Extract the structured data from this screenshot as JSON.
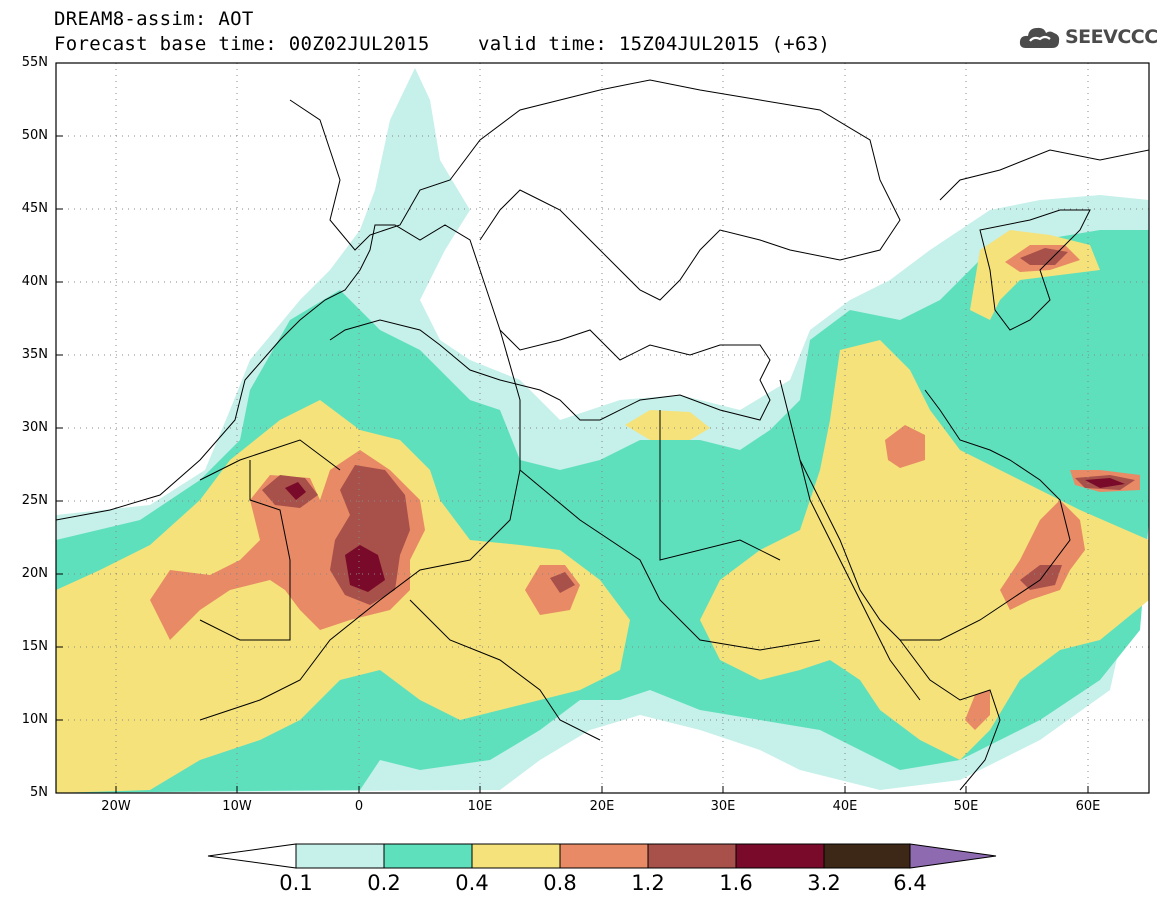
{
  "header": {
    "title": "DREAM8-assim: AOT",
    "base_time": "Forecast base time: 00Z02JUL2015",
    "valid_time": "valid time: 15Z04JUL2015 (+63)"
  },
  "logo": {
    "text": "SEEVCCC",
    "icon": "cloud-icon"
  },
  "map": {
    "lon_range": [
      -25,
      65
    ],
    "lat_range": [
      5,
      55
    ],
    "lat_labels": [
      "55N",
      "50N",
      "45N",
      "40N",
      "35N",
      "30N",
      "25N",
      "20N",
      "15N",
      "10N",
      "5N"
    ],
    "lat_values": [
      55,
      50,
      45,
      40,
      35,
      30,
      25,
      20,
      15,
      10,
      5
    ],
    "lon_labels": [
      "20W",
      "10W",
      "0",
      "10E",
      "20E",
      "30E",
      "40E",
      "50E",
      "60E"
    ],
    "lon_values": [
      -20,
      -10,
      0,
      10,
      20,
      30,
      40,
      50,
      60
    ],
    "field": "AOT"
  },
  "colorbar": {
    "labels": [
      "0.1",
      "0.2",
      "0.4",
      "0.8",
      "1.2",
      "1.6",
      "3.2",
      "6.4"
    ],
    "colors": [
      "#ffffff",
      "#c6f0ea",
      "#5ee0bd",
      "#f5e27a",
      "#e88a66",
      "#a8504a",
      "#7a0a2a",
      "#3d2817",
      "#8e6bb0"
    ]
  }
}
